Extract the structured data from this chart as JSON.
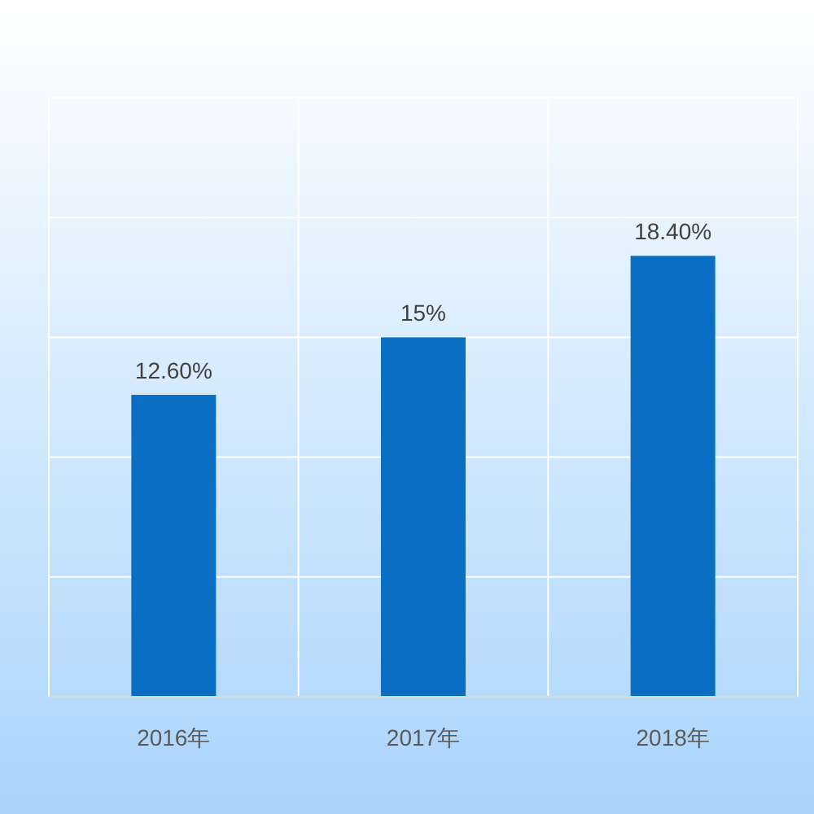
{
  "chart_data": {
    "type": "bar",
    "categories": [
      "2016年",
      "2017年",
      "2018年"
    ],
    "values": [
      12.6,
      15,
      18.4
    ],
    "value_labels": [
      "12.60%",
      "15%",
      "18.40%"
    ],
    "color": "#0a6fc2",
    "ylim": [
      0,
      25
    ],
    "yticks": [
      {
        "value": 0,
        "label": null
      },
      {
        "value": 5,
        "label": null
      },
      {
        "value": 10,
        "label": null
      },
      {
        "value": 15,
        "label": null
      },
      {
        "value": 20,
        "label": null
      },
      {
        "value": 25,
        "label": null
      }
    ],
    "grid": true
  }
}
